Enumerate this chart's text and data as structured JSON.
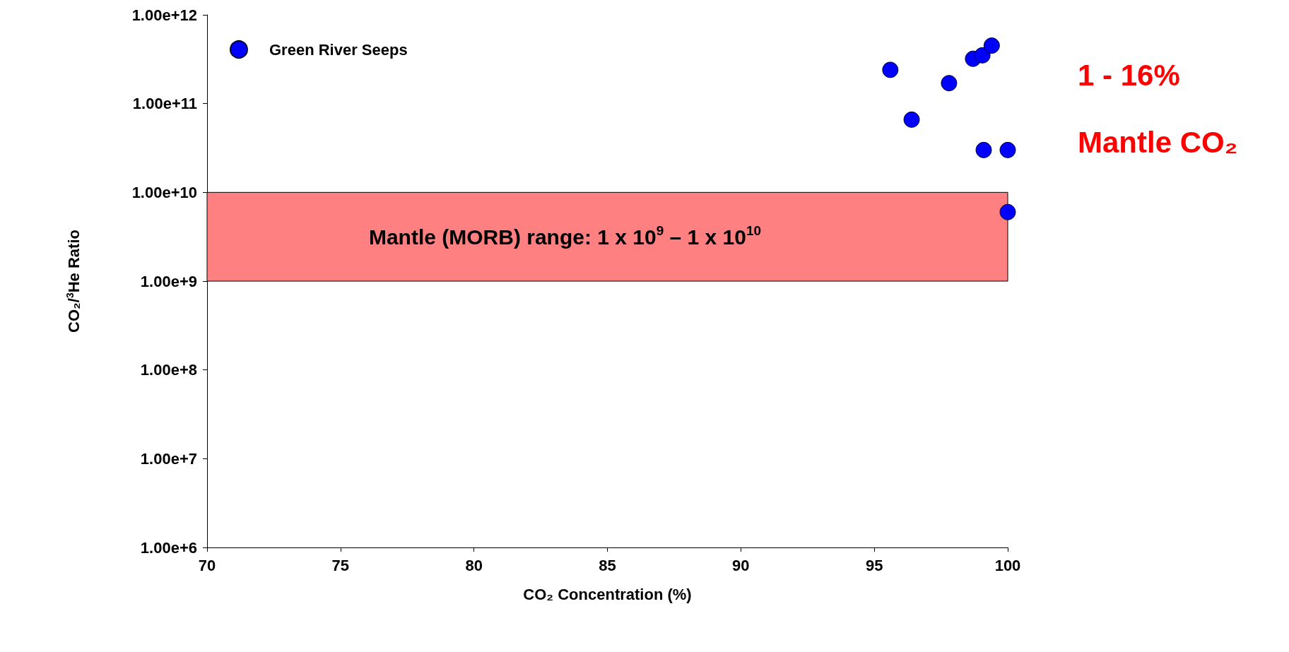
{
  "chart_data": {
    "type": "scatter",
    "xlabel": "CO₂ Concentration (%)",
    "ylabel": "CO₂/$^{3}$He Ratio",
    "log": "y",
    "grid": false,
    "legend": "top left",
    "marker": "circle",
    "xlim": [
      70,
      100
    ],
    "xticks": [
      70,
      75,
      80,
      85,
      90,
      95,
      100
    ],
    "ylim": [
      1000000,
      1000000000000
    ],
    "yticks": [
      {
        "value": 1000000,
        "label": "1.00e+6"
      },
      {
        "value": 10000000,
        "label": "1.00e+7"
      },
      {
        "value": 100000000,
        "label": "1.00e+8"
      },
      {
        "value": 1000000000,
        "label": "1.00e+9"
      },
      {
        "value": 10000000000,
        "label": "1.00e+10"
      },
      {
        "value": 100000000000,
        "label": "1.00e+11"
      },
      {
        "value": 1000000000000,
        "label": "1.00e+12"
      }
    ],
    "series": [
      {
        "name": "Green River Seeps",
        "color": "#0000ff",
        "x": [
          95.6,
          96.4,
          97.8,
          98.7,
          99.05,
          99.4,
          99.1,
          100,
          100
        ],
        "values": [
          240000000000,
          66000000000,
          170000000000,
          320000000000,
          350000000000,
          450000000000,
          30000000000,
          30000000000,
          6000000000
        ]
      }
    ],
    "bands": [
      {
        "axis": "y",
        "from": 1000000000,
        "to": 10000000000,
        "label": "Mantle (MORB) range: 1 x 10$^{9}$ – 1 x 10$^{10}$",
        "color": "#ff8080"
      }
    ],
    "annotations": [
      "1 - 16%",
      "Mantle CO₂"
    ]
  }
}
